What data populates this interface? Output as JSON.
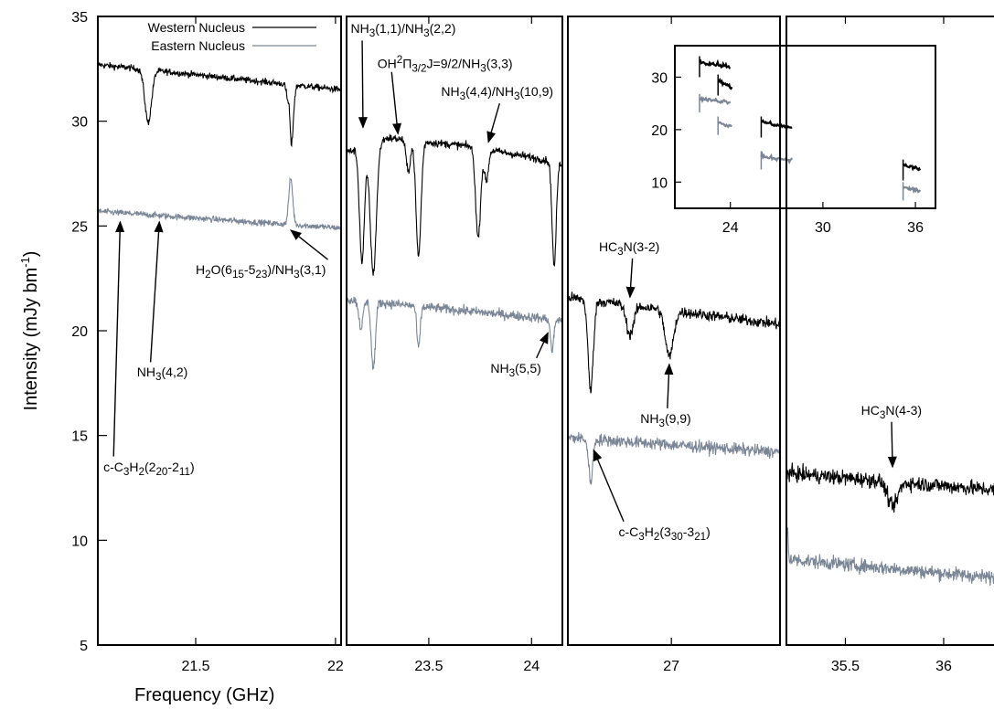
{
  "chart_data": {
    "type": "line",
    "title": "",
    "xlabel": "Frequency (GHz)",
    "ylabel": "Intensity (mJy bm",
    "ylabel_sup": "-1",
    "ylabel_close": ")",
    "ylim": [
      5,
      35
    ],
    "yticks": [
      5,
      10,
      15,
      20,
      25,
      30,
      35
    ],
    "legend": {
      "placement": "top-left",
      "entries": [
        {
          "name": "Western Nucleus",
          "color": "#000000"
        },
        {
          "name": "Eastern Nucleus",
          "color": "#7a8696"
        }
      ]
    },
    "colors": {
      "western": "#000000",
      "eastern": "#7a8696"
    },
    "panels": [
      {
        "id": "p1",
        "xlim": [
          21.15,
          22.02
        ],
        "xticks": [
          21.5,
          22
        ],
        "xticklabels": [
          "21.5",
          "22"
        ],
        "series": [
          {
            "name": "Western Nucleus",
            "baseline": [
              [
                21.15,
                32.7
              ],
              [
                22.02,
                31.5
              ]
            ],
            "noise": 0.15,
            "features": [
              [
                21.33,
                -2.5,
                0.012
              ],
              [
                21.84,
                -3.3,
                0.008
              ],
              [
                21.835,
                1.5,
                0.004
              ]
            ]
          },
          {
            "name": "Eastern Nucleus",
            "baseline": [
              [
                21.15,
                25.7
              ],
              [
                22.02,
                24.9
              ]
            ],
            "noise": 0.14,
            "features": [
              [
                21.84,
                2.2,
                0.007
              ]
            ]
          }
        ]
      },
      {
        "id": "p2",
        "xlim": [
          23.1,
          24.15
        ],
        "xticks": [
          23.5,
          24
        ],
        "xticklabels": [
          "23.5",
          "24"
        ],
        "series": [
          {
            "name": "Western Nucleus",
            "baseline": [
              [
                23.1,
                28.5
              ],
              [
                23.3,
                29.2
              ],
              [
                23.7,
                28.8
              ],
              [
                24.15,
                28.0
              ]
            ],
            "noise": 0.18,
            "features": [
              [
                23.175,
                -5.5,
                0.012
              ],
              [
                23.23,
                -6.2,
                0.015
              ],
              [
                23.4,
                -1.5,
                0.01
              ],
              [
                23.45,
                -5.5,
                0.012
              ],
              [
                23.74,
                -4.3,
                0.012
              ],
              [
                23.78,
                -1.5,
                0.01
              ],
              [
                24.11,
                -5.0,
                0.01
              ]
            ]
          },
          {
            "name": "Eastern Nucleus",
            "baseline": [
              [
                23.1,
                21.5
              ],
              [
                24.15,
                20.5
              ]
            ],
            "noise": 0.22,
            "features": [
              [
                23.23,
                -3.2,
                0.01
              ],
              [
                23.45,
                -2.0,
                0.008
              ],
              [
                23.17,
                -1.3,
                0.01
              ],
              [
                24.1,
                -1.5,
                0.008
              ]
            ]
          }
        ]
      },
      {
        "id": "p3",
        "xlim": [
          26.0,
          28.05
        ],
        "xticks": [
          27
        ],
        "xticklabels": [
          "27"
        ],
        "series": [
          {
            "name": "Western Nucleus",
            "baseline": [
              [
                26.0,
                21.6
              ],
              [
                28.05,
                20.3
              ]
            ],
            "noise": 0.25,
            "features": [
              [
                26.22,
                -4.3,
                0.025
              ],
              [
                26.6,
                -1.4,
                0.035
              ],
              [
                26.98,
                -2.2,
                0.04
              ]
            ]
          },
          {
            "name": "Eastern Nucleus",
            "baseline": [
              [
                26.0,
                14.9
              ],
              [
                28.05,
                14.2
              ]
            ],
            "noise": 0.28,
            "features": [
              [
                26.22,
                -2.0,
                0.02
              ]
            ]
          }
        ]
      },
      {
        "id": "p4",
        "xlim": [
          35.2,
          36.27
        ],
        "xticks": [
          35.5,
          36
        ],
        "xticklabels": [
          "35.5",
          "36"
        ],
        "series": [
          {
            "name": "Western Nucleus",
            "baseline": [
              [
                35.2,
                13.2
              ],
              [
                36.27,
                12.4
              ]
            ],
            "noise": 0.35,
            "features": [
              [
                35.74,
                -1.2,
                0.025
              ]
            ]
          },
          {
            "name": "Eastern Nucleus",
            "baseline": [
              [
                35.2,
                9.1
              ],
              [
                36.27,
                8.2
              ]
            ],
            "noise": 0.32,
            "features": [
              [
                35.205,
                1.5,
                0.004
              ]
            ]
          }
        ]
      }
    ],
    "inset": {
      "ylim": [
        5,
        36
      ],
      "yticks": [
        10,
        20,
        30
      ],
      "xticklabels": [
        "24",
        "30",
        "36"
      ],
      "segments": [
        {
          "x": [
            "22",
            "24"
          ],
          "western": [
            33.0,
            32.0
          ],
          "eastern": [
            25.8,
            25.3
          ]
        },
        {
          "x": [
            "23.2",
            "24.1"
          ],
          "western": [
            29.5,
            28.0
          ],
          "eastern": [
            21.5,
            20.5
          ]
        },
        {
          "x": [
            "26",
            "28"
          ],
          "western": [
            21.5,
            20.3
          ],
          "eastern": [
            14.9,
            14.2
          ]
        },
        {
          "x": [
            "35.2",
            "36.3"
          ],
          "western": [
            13.3,
            12.4
          ],
          "eastern": [
            9.0,
            8.3
          ]
        }
      ]
    },
    "annotations": [
      {
        "id": "h2o",
        "panel": "p1",
        "text": "H<sub>2</sub>O(6<sub>15</sub>-5<sub>23</sub>)/NH<sub>3</sub>(3,1)",
        "tx": 21.5,
        "ty": 22.7,
        "ax": 21.84,
        "ay": 24.8
      },
      {
        "id": "nh3_42",
        "panel": "p1",
        "text": "NH<sub>3</sub>(4,2)",
        "tx": 21.29,
        "ty": 17.8,
        "ax": 21.37,
        "ay": 25.2
      },
      {
        "id": "c3h2_a",
        "panel": "p1",
        "text": "c-C<sub>3</sub>H<sub>2</sub>(2<sub>20</sub>-2<sub>11</sub>)",
        "tx": 21.17,
        "ty": 13.3,
        "ax": 21.23,
        "ay": 25.2
      },
      {
        "id": "nh3_1122",
        "panel": "p2",
        "text": "NH<sub>3</sub>(1,1)/NH<sub>3</sub>(2,2)",
        "tx": 23.12,
        "ty": 34.2,
        "ax": 23.18,
        "ay": 29.7
      },
      {
        "id": "oh_nh3",
        "panel": "p2",
        "text": "OH<sup>2</sup>&#928;<sub>3/2</sub>J=9/2/NH<sub>3</sub>(3,3)",
        "tx": 23.25,
        "ty": 32.7,
        "ax": 23.35,
        "ay": 29.4
      },
      {
        "id": "nh3_44",
        "panel": "p2",
        "text": "NH<sub>3</sub>(4,4)/NH<sub>3</sub>(10,9)",
        "tx": 23.56,
        "ty": 31.2,
        "ax": 23.79,
        "ay": 29.0
      },
      {
        "id": "nh3_55",
        "panel": "p2",
        "text": "NH<sub>3</sub>(5,5)",
        "tx": 23.8,
        "ty": 18.0,
        "ax": 24.08,
        "ay": 19.9
      },
      {
        "id": "hc3n_32",
        "panel": "p3",
        "text": "HC<sub>3</sub>N(3-2)",
        "tx": 26.3,
        "ty": 23.8,
        "ax": 26.6,
        "ay": 21.6
      },
      {
        "id": "nh3_99",
        "panel": "p3",
        "text": "NH<sub>3</sub>(9,9)",
        "tx": 26.7,
        "ty": 15.6,
        "ax": 26.98,
        "ay": 18.4
      },
      {
        "id": "c3h2_b",
        "panel": "p3",
        "text": "c-C<sub>3</sub>H<sub>2</sub>(3<sub>30</sub>-3<sub>21</sub>)",
        "tx": 26.49,
        "ty": 10.2,
        "ax": 26.25,
        "ay": 14.3
      },
      {
        "id": "hc3n_43",
        "panel": "p4",
        "text": "HC<sub>3</sub>N(4-3)",
        "tx": 35.58,
        "ty": 16.0,
        "ax": 35.74,
        "ay": 13.5
      }
    ]
  }
}
